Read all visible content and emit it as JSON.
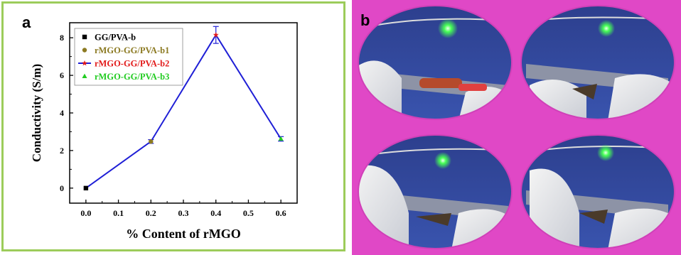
{
  "panel_a": {
    "letter": "a"
  },
  "panel_b": {
    "letter": "b"
  },
  "colors": {
    "line": "#1f1fd6",
    "GG/PVA-b": "#000000",
    "rMGO-GG/PVA-b1": "#8c7a22",
    "rMGO-GG/PVA-b2": "#e21b1b",
    "rMGO-GG/PVA-b3": "#22cc22",
    "panel_border": "#9ccc5a",
    "panel_b_background": "#e048c6"
  },
  "chart_data": {
    "type": "line",
    "xlabel": "% Content of rMGO",
    "ylabel": "Conductivity (S/m)",
    "xlim": [
      -0.05,
      0.65
    ],
    "ylim": [
      -0.8,
      8.8
    ],
    "xticks": [
      "0.0",
      "0.1",
      "0.2",
      "0.3",
      "0.4",
      "0.5",
      "0.6"
    ],
    "yticks": [
      "0",
      "2",
      "4",
      "6",
      "8"
    ],
    "legend_position": "top-left",
    "grid": false,
    "series": [
      {
        "name": "GG/PVA-b",
        "marker": "square",
        "x": [
          0.0
        ],
        "y": [
          0.0
        ],
        "err": [
          0.0
        ]
      },
      {
        "name": "rMGO-GG/PVA-b1",
        "marker": "circle",
        "x": [
          0.2
        ],
        "y": [
          2.48
        ],
        "err": [
          0.1
        ]
      },
      {
        "name": "rMGO-GG/PVA-b2",
        "marker": "star",
        "x": [
          0.4
        ],
        "y": [
          8.15
        ],
        "err": [
          0.45
        ]
      },
      {
        "name": "rMGO-GG/PVA-b3",
        "marker": "triangle",
        "x": [
          0.6
        ],
        "y": [
          2.62
        ],
        "err": [
          0.12
        ]
      }
    ],
    "connecting_line": {
      "x": [
        0.0,
        0.2,
        0.4,
        0.6
      ],
      "y": [
        0.0,
        2.48,
        8.15,
        2.62
      ]
    }
  },
  "photos": [
    {
      "icon": "led-circuit-photo-top-left"
    },
    {
      "icon": "led-circuit-photo-top-right"
    },
    {
      "icon": "led-circuit-photo-bottom-left"
    },
    {
      "icon": "led-circuit-photo-bottom-right"
    }
  ]
}
